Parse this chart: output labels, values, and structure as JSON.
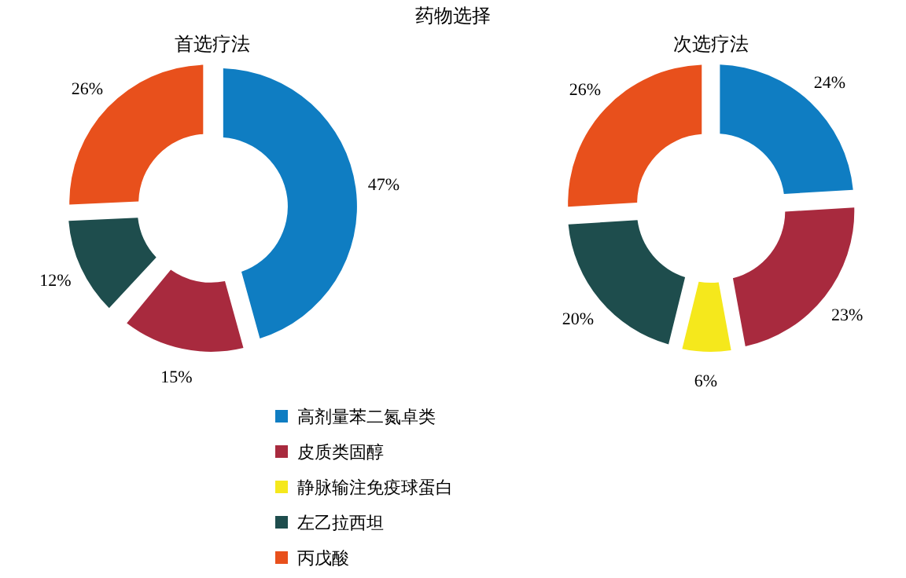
{
  "chart_data": [
    {
      "type": "donut",
      "title": "药物选择",
      "subtitle": "首选疗法",
      "categories": [
        "高剂量苯二氮卓类",
        "皮质类固醇",
        "静脉输注免疫球蛋白",
        "左乙拉西坦",
        "丙戊酸"
      ],
      "values": [
        47,
        15,
        null,
        12,
        26
      ],
      "colors": [
        "#0f7dc2",
        "#a82a3e",
        "#f5e81c",
        "#1e4d4d",
        "#e8501c"
      ],
      "value_labels": [
        "47%",
        "15%",
        null,
        "12%",
        "26%"
      ],
      "legend": "bottom"
    },
    {
      "type": "donut",
      "subtitle": "次选疗法",
      "categories": [
        null,
        null,
        null,
        null,
        null
      ],
      "values": [
        24,
        23,
        6,
        20,
        26
      ],
      "colors": [
        "#0f7dc2",
        "#a82a3e",
        "#f5e81c",
        "#1e4d4d",
        "#e8501c"
      ],
      "value_labels": [
        "24%",
        "23%",
        "6%",
        "20%",
        "26%"
      ],
      "legend": false
    }
  ]
}
